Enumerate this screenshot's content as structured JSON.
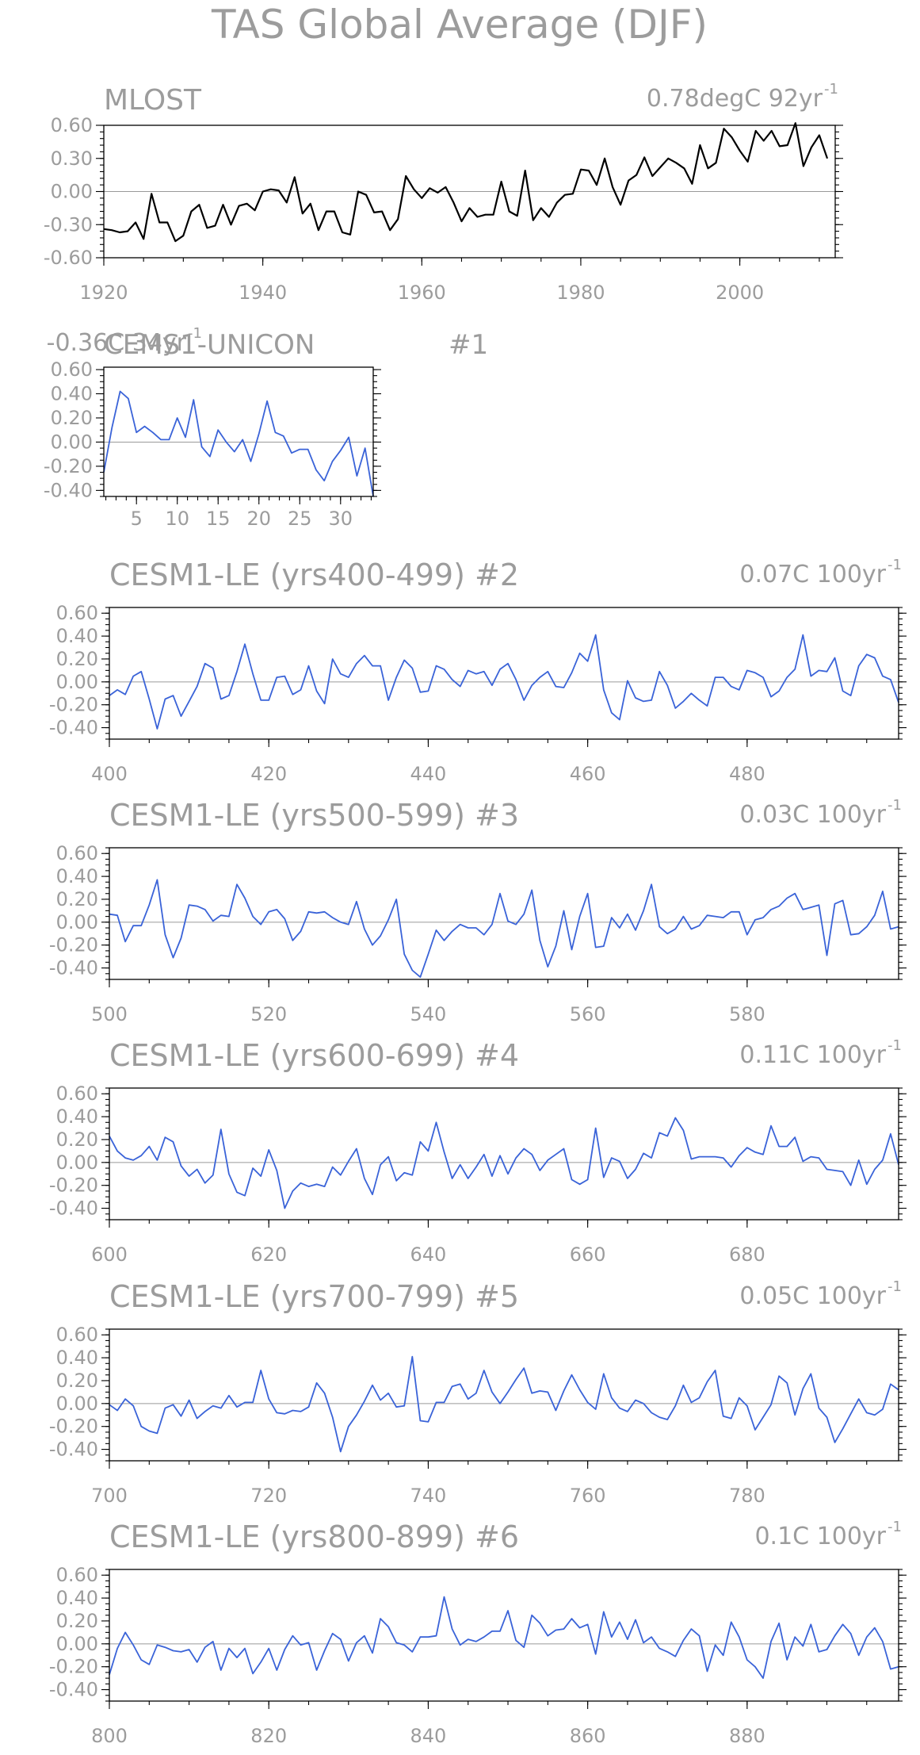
{
  "figure": {
    "title": "TAS Global Average (DJF)"
  },
  "colors": {
    "observed": "#000000",
    "model": "#3a63d8",
    "text": "#9c9c9c",
    "zero_line": "#9a9a9a"
  },
  "chart_data": [
    {
      "type": "line",
      "name": "MLOST",
      "title": "MLOST",
      "trend_label": "0.78degC 92yr",
      "trend_sup": "-1",
      "color": "#000000",
      "xlim": [
        1920,
        2012
      ],
      "ylim": [
        -0.6,
        0.6
      ],
      "x_ticks": [
        1920,
        1940,
        1960,
        1980,
        2000
      ],
      "y_ticks": [
        "0.60",
        "0.30",
        "0.00",
        "-0.30",
        "-0.60"
      ],
      "x_start": 1920,
      "values": [
        -0.34,
        -0.35,
        -0.37,
        -0.36,
        -0.28,
        -0.43,
        -0.02,
        -0.28,
        -0.28,
        -0.45,
        -0.4,
        -0.18,
        -0.12,
        -0.33,
        -0.31,
        -0.12,
        -0.3,
        -0.13,
        -0.11,
        -0.17,
        0.0,
        0.02,
        0.01,
        -0.1,
        0.13,
        -0.2,
        -0.11,
        -0.35,
        -0.18,
        -0.18,
        -0.37,
        -0.39,
        0.0,
        -0.03,
        -0.19,
        -0.18,
        -0.35,
        -0.25,
        0.14,
        0.02,
        -0.06,
        0.03,
        -0.01,
        0.04,
        -0.1,
        -0.27,
        -0.15,
        -0.23,
        -0.21,
        -0.21,
        0.09,
        -0.18,
        -0.22,
        0.19,
        -0.26,
        -0.15,
        -0.23,
        -0.1,
        -0.03,
        -0.02,
        0.2,
        0.19,
        0.06,
        0.3,
        0.04,
        -0.12,
        0.1,
        0.15,
        0.31,
        0.14,
        0.22,
        0.3,
        0.26,
        0.21,
        0.07,
        0.42,
        0.21,
        0.26,
        0.57,
        0.49,
        0.37,
        0.27,
        0.55,
        0.46,
        0.55,
        0.41,
        0.42,
        0.62,
        0.23,
        0.4,
        0.51,
        0.3
      ]
    },
    {
      "type": "line",
      "name": "CEMS1-UNICON #1",
      "title": "CEMS1-UNICON",
      "title_suffix": "#1",
      "trend_label": "-0.36C 34yr",
      "trend_sup": "-1",
      "color": "#3a63d8",
      "xlim": [
        1,
        34
      ],
      "ylim": [
        -0.45,
        0.62
      ],
      "x_ticks": [
        5,
        10,
        15,
        20,
        25,
        30
      ],
      "y_ticks": [
        "0.60",
        "0.40",
        "0.20",
        "0.00",
        "-0.20",
        "-0.40"
      ],
      "x_start": 1,
      "values": [
        -0.25,
        0.12,
        0.42,
        0.36,
        0.08,
        0.13,
        0.08,
        0.02,
        0.02,
        0.2,
        0.04,
        0.35,
        -0.04,
        -0.12,
        0.1,
        0.0,
        -0.08,
        0.02,
        -0.16,
        0.07,
        0.34,
        0.08,
        0.05,
        -0.09,
        -0.06,
        -0.06,
        -0.23,
        -0.32,
        -0.16,
        -0.07,
        0.04,
        -0.28,
        -0.05,
        -0.45
      ]
    },
    {
      "type": "line",
      "name": "CESM1-LE (yrs400-499) #2",
      "title": "CESM1-LE (yrs400-499) #2",
      "trend_label": "0.07C 100yr",
      "trend_sup": "-1",
      "color": "#3a63d8",
      "xlim": [
        400,
        499
      ],
      "ylim": [
        -0.5,
        0.65
      ],
      "x_ticks": [
        400,
        420,
        440,
        460,
        480
      ],
      "y_ticks": [
        "0.60",
        "0.40",
        "0.20",
        "0.00",
        "-0.20",
        "-0.40"
      ],
      "x_start": 400,
      "values": [
        -0.12,
        -0.07,
        -0.11,
        0.05,
        0.09,
        -0.15,
        -0.41,
        -0.15,
        -0.12,
        -0.3,
        -0.17,
        -0.04,
        0.16,
        0.12,
        -0.15,
        -0.12,
        0.09,
        0.33,
        0.07,
        -0.16,
        -0.16,
        0.04,
        0.05,
        -0.11,
        -0.07,
        0.14,
        -0.08,
        -0.19,
        0.2,
        0.07,
        0.04,
        0.16,
        0.23,
        0.14,
        0.14,
        -0.16,
        0.04,
        0.19,
        0.12,
        -0.09,
        -0.08,
        0.14,
        0.11,
        0.02,
        -0.04,
        0.1,
        0.07,
        0.09,
        -0.03,
        0.11,
        0.16,
        0.02,
        -0.16,
        -0.03,
        0.04,
        0.09,
        -0.04,
        -0.05,
        0.08,
        0.25,
        0.18,
        0.41,
        -0.07,
        -0.27,
        -0.33,
        0.01,
        -0.14,
        -0.17,
        -0.16,
        0.09,
        -0.03,
        -0.23,
        -0.17,
        -0.1,
        -0.16,
        -0.21,
        0.04,
        0.04,
        -0.04,
        -0.07,
        0.1,
        0.08,
        0.04,
        -0.13,
        -0.08,
        0.04,
        0.11,
        0.41,
        0.05,
        0.1,
        0.09,
        0.21,
        -0.08,
        -0.12,
        0.14,
        0.24,
        0.21,
        0.05,
        0.02,
        -0.18
      ]
    },
    {
      "type": "line",
      "name": "CESM1-LE (yrs500-599) #3",
      "title": "CESM1-LE (yrs500-599) #3",
      "trend_label": "0.03C 100yr",
      "trend_sup": "-1",
      "color": "#3a63d8",
      "xlim": [
        500,
        599
      ],
      "ylim": [
        -0.5,
        0.65
      ],
      "x_ticks": [
        500,
        520,
        540,
        560,
        580
      ],
      "y_ticks": [
        "0.60",
        "0.40",
        "0.20",
        "0.00",
        "-0.20",
        "-0.40"
      ],
      "x_start": 500,
      "values": [
        0.07,
        0.06,
        -0.17,
        -0.03,
        -0.03,
        0.15,
        0.37,
        -0.11,
        -0.31,
        -0.14,
        0.15,
        0.14,
        0.11,
        0.01,
        0.06,
        0.05,
        0.33,
        0.21,
        0.05,
        -0.02,
        0.09,
        0.11,
        0.03,
        -0.16,
        -0.08,
        0.09,
        0.08,
        0.09,
        0.04,
        0.0,
        -0.02,
        0.18,
        -0.06,
        -0.2,
        -0.12,
        0.02,
        0.2,
        -0.28,
        -0.42,
        -0.48,
        -0.28,
        -0.07,
        -0.16,
        -0.08,
        -0.02,
        -0.05,
        -0.05,
        -0.11,
        -0.02,
        0.25,
        0.01,
        -0.02,
        0.07,
        0.28,
        -0.16,
        -0.39,
        -0.21,
        0.1,
        -0.24,
        0.05,
        0.25,
        -0.22,
        -0.21,
        0.04,
        -0.05,
        0.07,
        -0.07,
        0.1,
        0.33,
        -0.04,
        -0.1,
        -0.06,
        0.05,
        -0.06,
        -0.03,
        0.06,
        0.05,
        0.04,
        0.09,
        0.09,
        -0.11,
        0.02,
        0.04,
        0.11,
        0.14,
        0.21,
        0.25,
        0.11,
        0.13,
        0.15,
        -0.29,
        0.16,
        0.19,
        -0.11,
        -0.1,
        -0.04,
        0.06,
        0.27,
        -0.06,
        -0.04
      ]
    },
    {
      "type": "line",
      "name": "CESM1-LE (yrs600-699) #4",
      "title": "CESM1-LE (yrs600-699) #4",
      "trend_label": "0.11C 100yr",
      "trend_sup": "-1",
      "color": "#3a63d8",
      "xlim": [
        600,
        699
      ],
      "ylim": [
        -0.5,
        0.65
      ],
      "x_ticks": [
        600,
        620,
        640,
        660,
        680
      ],
      "y_ticks": [
        "0.60",
        "0.40",
        "0.20",
        "0.00",
        "-0.20",
        "-0.40"
      ],
      "x_start": 600,
      "values": [
        0.23,
        0.1,
        0.04,
        0.02,
        0.06,
        0.14,
        0.02,
        0.22,
        0.18,
        -0.03,
        -0.12,
        -0.06,
        -0.18,
        -0.11,
        0.29,
        -0.1,
        -0.26,
        -0.29,
        -0.05,
        -0.12,
        0.11,
        -0.07,
        -0.4,
        -0.25,
        -0.18,
        -0.21,
        -0.19,
        -0.21,
        -0.04,
        -0.11,
        0.01,
        0.12,
        -0.14,
        -0.28,
        -0.02,
        0.05,
        -0.16,
        -0.09,
        -0.11,
        0.18,
        0.1,
        0.35,
        0.09,
        -0.14,
        -0.02,
        -0.14,
        -0.04,
        0.07,
        -0.12,
        0.06,
        -0.1,
        0.04,
        0.12,
        0.07,
        -0.07,
        0.02,
        0.07,
        0.12,
        -0.15,
        -0.19,
        -0.15,
        0.3,
        -0.13,
        0.04,
        0.01,
        -0.14,
        -0.06,
        0.08,
        0.04,
        0.26,
        0.23,
        0.39,
        0.28,
        0.03,
        0.05,
        0.05,
        0.05,
        0.04,
        -0.04,
        0.06,
        0.13,
        0.09,
        0.07,
        0.32,
        0.14,
        0.14,
        0.22,
        0.01,
        0.05,
        0.04,
        -0.06,
        -0.07,
        -0.08,
        -0.2,
        0.02,
        -0.19,
        -0.06,
        0.02,
        0.25,
        -0.02
      ]
    },
    {
      "type": "line",
      "name": "CESM1-LE (yrs700-799) #5",
      "title": "CESM1-LE (yrs700-799) #5",
      "trend_label": "0.05C 100yr",
      "trend_sup": "-1",
      "color": "#3a63d8",
      "xlim": [
        700,
        799
      ],
      "ylim": [
        -0.5,
        0.65
      ],
      "x_ticks": [
        700,
        720,
        740,
        760,
        780
      ],
      "y_ticks": [
        "0.60",
        "0.40",
        "0.20",
        "0.00",
        "-0.20",
        "-0.40"
      ],
      "x_start": 700,
      "values": [
        -0.01,
        -0.06,
        0.04,
        -0.02,
        -0.2,
        -0.24,
        -0.26,
        -0.04,
        -0.01,
        -0.11,
        0.03,
        -0.13,
        -0.07,
        -0.02,
        -0.04,
        0.07,
        -0.03,
        0.01,
        0.01,
        0.29,
        0.04,
        -0.08,
        -0.09,
        -0.06,
        -0.07,
        -0.03,
        0.18,
        0.09,
        -0.12,
        -0.42,
        -0.2,
        -0.1,
        0.02,
        0.16,
        0.03,
        0.09,
        -0.03,
        -0.02,
        0.41,
        -0.15,
        -0.16,
        0.01,
        0.01,
        0.15,
        0.17,
        0.04,
        0.09,
        0.29,
        0.1,
        0.0,
        0.1,
        0.21,
        0.31,
        0.09,
        0.11,
        0.1,
        -0.06,
        0.11,
        0.25,
        0.12,
        0.01,
        -0.05,
        0.26,
        0.05,
        -0.04,
        -0.07,
        0.03,
        0.0,
        -0.08,
        -0.12,
        -0.14,
        -0.02,
        0.16,
        0.01,
        0.05,
        0.19,
        0.29,
        -0.11,
        -0.13,
        0.05,
        -0.02,
        -0.23,
        -0.12,
        -0.01,
        0.24,
        0.18,
        -0.1,
        0.13,
        0.26,
        -0.04,
        -0.12,
        -0.34,
        -0.22,
        -0.09,
        0.04,
        -0.08,
        -0.1,
        -0.05,
        0.17,
        0.12
      ]
    },
    {
      "type": "line",
      "name": "CESM1-LE (yrs800-899) #6",
      "title": "CESM1-LE (yrs800-899) #6",
      "trend_label": "0.1C 100yr",
      "trend_sup": "-1",
      "color": "#3a63d8",
      "xlim": [
        800,
        899
      ],
      "ylim": [
        -0.5,
        0.65
      ],
      "x_ticks": [
        800,
        820,
        840,
        860,
        880
      ],
      "y_ticks": [
        "0.60",
        "0.40",
        "0.20",
        "0.00",
        "-0.20",
        "-0.40"
      ],
      "x_start": 800,
      "values": [
        -0.27,
        -0.04,
        0.1,
        -0.01,
        -0.14,
        -0.18,
        -0.01,
        -0.03,
        -0.06,
        -0.07,
        -0.05,
        -0.16,
        -0.03,
        0.02,
        -0.23,
        -0.04,
        -0.12,
        -0.04,
        -0.26,
        -0.16,
        -0.04,
        -0.23,
        -0.05,
        0.07,
        -0.01,
        0.01,
        -0.23,
        -0.06,
        0.09,
        0.04,
        -0.15,
        0.01,
        0.07,
        -0.08,
        0.22,
        0.15,
        0.01,
        -0.01,
        -0.07,
        0.06,
        0.06,
        0.07,
        0.41,
        0.13,
        -0.01,
        0.04,
        0.02,
        0.06,
        0.11,
        0.11,
        0.29,
        0.03,
        -0.03,
        0.25,
        0.18,
        0.07,
        0.12,
        0.13,
        0.22,
        0.14,
        0.17,
        -0.09,
        0.28,
        0.06,
        0.19,
        0.04,
        0.21,
        0.01,
        0.06,
        -0.04,
        -0.07,
        -0.11,
        0.03,
        0.13,
        0.07,
        -0.24,
        -0.01,
        -0.1,
        0.19,
        0.06,
        -0.14,
        -0.2,
        -0.3,
        0.02,
        0.18,
        -0.14,
        0.06,
        -0.02,
        0.17,
        -0.07,
        -0.05,
        0.07,
        0.17,
        0.09,
        -0.1,
        0.06,
        0.14,
        0.02,
        -0.22,
        -0.2
      ]
    }
  ]
}
